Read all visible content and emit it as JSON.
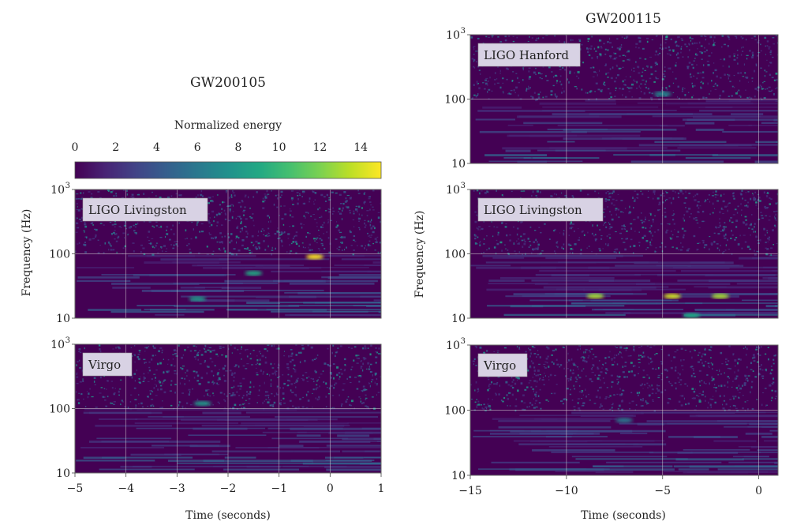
{
  "colors": {
    "viridis": [
      "#440154",
      "#482475",
      "#414487",
      "#355f8d",
      "#2a788e",
      "#21918c",
      "#22a884",
      "#44bf70",
      "#7ad151",
      "#bddf26",
      "#fde725"
    ],
    "background": "#440154",
    "grid": "#d9d9d9",
    "label_box": "#d8d2e4"
  },
  "chart_data": [
    {
      "type": "heatmap",
      "title": "GW200105",
      "colorbar": {
        "label": "Normalized energy",
        "ticks": [
          "0",
          "2",
          "4",
          "6",
          "8",
          "10",
          "12",
          "14"
        ],
        "range": [
          0,
          15
        ]
      },
      "xlabel": "Time (seconds)",
      "ylabel": "Frequency (Hz)",
      "xlim": [
        -5,
        1
      ],
      "xticks": [
        "−5",
        "−4",
        "−3",
        "−2",
        "−1",
        "0",
        "1"
      ],
      "ylim": [
        10,
        1000
      ],
      "yscale": "log",
      "yticks": [
        {
          "base": "10",
          "exp": "3"
        },
        {
          "base": "100",
          "exp": ""
        },
        {
          "base": "10",
          "exp": ""
        }
      ],
      "panels": [
        {
          "detector": "LIGO Livingston",
          "track_points": [
            {
              "t": -2.6,
              "f": 20,
              "e": 8
            },
            {
              "t": -1.5,
              "f": 50,
              "e": 9
            },
            {
              "t": -0.3,
              "f": 90,
              "e": 15
            }
          ]
        },
        {
          "detector": "Virgo",
          "track_points": [
            {
              "t": -2.5,
              "f": 120,
              "e": 8
            }
          ]
        }
      ]
    },
    {
      "type": "heatmap",
      "title": "GW200115",
      "xlabel": "Time (seconds)",
      "ylabel": "Frequency (Hz)",
      "xlim": [
        -15,
        1
      ],
      "xticks": [
        "−15",
        "−10",
        "−5",
        "0"
      ],
      "ylim": [
        10,
        1000
      ],
      "yscale": "log",
      "yticks": [
        {
          "base": "10",
          "exp": "3"
        },
        {
          "base": "100",
          "exp": ""
        },
        {
          "base": "10",
          "exp": ""
        }
      ],
      "panels": [
        {
          "detector": "LIGO Hanford",
          "track_points": [
            {
              "t": -5,
              "f": 120,
              "e": 7
            }
          ]
        },
        {
          "detector": "LIGO Livingston",
          "track_points": [
            {
              "t": -8.5,
              "f": 22,
              "e": 13
            },
            {
              "t": -4.5,
              "f": 22,
              "e": 14
            },
            {
              "t": -2,
              "f": 22,
              "e": 13
            },
            {
              "t": -3.5,
              "f": 11,
              "e": 9
            }
          ]
        },
        {
          "detector": "Virgo",
          "track_points": [
            {
              "t": -7,
              "f": 70,
              "e": 6
            }
          ]
        }
      ]
    }
  ]
}
